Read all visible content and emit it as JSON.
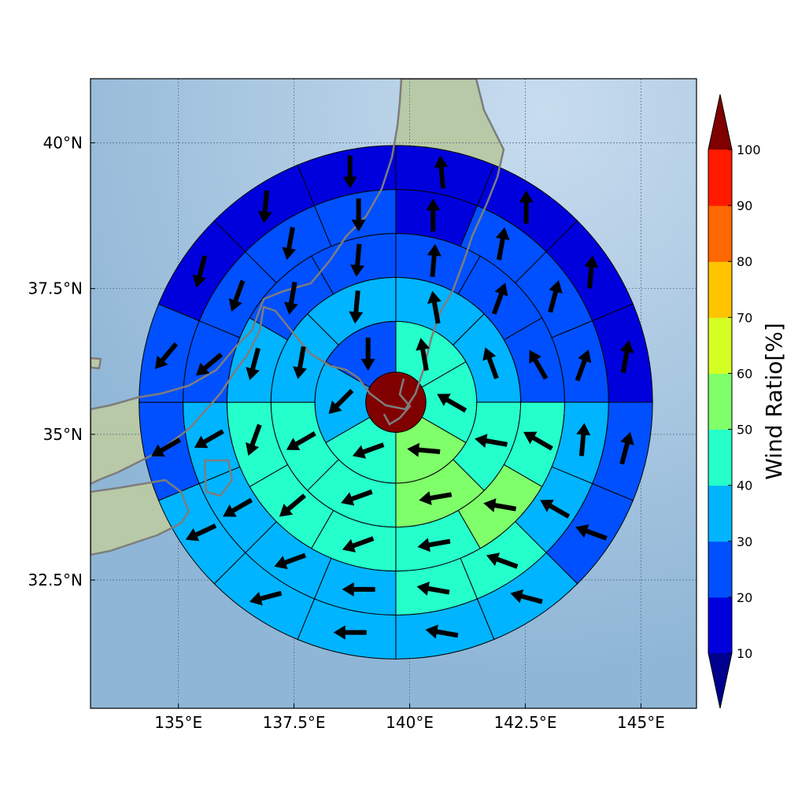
{
  "chart_data": {
    "type": "heatmap",
    "subtype": "polar sector map with wind vectors over a map",
    "title": "",
    "xlabel": "",
    "ylabel": "",
    "x_ticks": [
      135,
      137.5,
      140,
      142.5,
      145
    ],
    "x_tick_labels": [
      "135°E",
      "137.5°E",
      "140°E",
      "142.5°E",
      "145°E"
    ],
    "y_ticks": [
      32.5,
      35,
      37.5,
      40
    ],
    "y_tick_labels": [
      "32.5°N",
      "35°N",
      "37.5°N",
      "40°N"
    ],
    "xlim": [
      133.1,
      146.2
    ],
    "ylim": [
      30.3,
      41.1
    ],
    "grid": true,
    "center": {
      "lon": 139.7,
      "lat": 35.55,
      "value": 100
    },
    "ring_boundaries_deg": [
      0.65,
      1.75,
      2.7,
      3.65,
      4.6,
      5.55
    ],
    "ring_sector_counts": [
      6,
      8,
      12,
      16,
      16
    ],
    "sector_start_angle_deg": 90,
    "rings": [
      {
        "values": [
          45,
          45,
          55,
          45,
          30,
          25
        ],
        "wind_deg": [
          -10,
          -60,
          -85,
          -110,
          -135,
          -180
        ]
      },
      {
        "values": [
          30,
          35,
          45,
          55,
          45,
          45,
          30,
          30
        ],
        "wind_deg": [
          -10,
          -20,
          -80,
          -100,
          -110,
          -120,
          -170,
          -175
        ]
      },
      {
        "values": [
          25,
          25,
          25,
          45,
          55,
          45,
          40,
          40,
          40,
          30,
          20,
          20
        ],
        "wind_deg": [
          5,
          20,
          -30,
          -60,
          -80,
          -100,
          -110,
          -130,
          -160,
          -165,
          -170,
          -175
        ]
      },
      {
        "values": [
          15,
          20,
          20,
          20,
          30,
          30,
          40,
          40,
          30,
          30,
          30,
          30,
          20,
          20,
          20,
          20
        ],
        "wind_deg": [
          0,
          10,
          15,
          20,
          5,
          -60,
          -70,
          -80,
          -90,
          -110,
          -120,
          -120,
          -130,
          -160,
          -170,
          -180
        ]
      },
      {
        "values": [
          10,
          10,
          10,
          10,
          20,
          20,
          30,
          30,
          30,
          30,
          30,
          20,
          20,
          10,
          10,
          10
        ],
        "wind_deg": [
          -5,
          0,
          5,
          10,
          15,
          -70,
          -75,
          -80,
          -90,
          -105,
          -115,
          -120,
          -140,
          -165,
          -175,
          -180
        ]
      }
    ],
    "colorbar": {
      "label": "Wind Ratio[%]",
      "boundaries": [
        10,
        20,
        30,
        40,
        50,
        60,
        70,
        80,
        90,
        100
      ],
      "tick_labels": [
        "10",
        "20",
        "30",
        "40",
        "50",
        "60",
        "70",
        "80",
        "90",
        "100"
      ],
      "colors": [
        "#0000dd",
        "#0050ff",
        "#00b4ff",
        "#25ffcc",
        "#7fff6a",
        "#d5ff23",
        "#ffc300",
        "#ff6700",
        "#ff1a00"
      ],
      "under_color": "#00008f",
      "over_color": "#800000",
      "extend": "both"
    },
    "map_colors": {
      "ocean": "#8fb6d6",
      "ocean_light": "#c8dcee",
      "land": "#b7c9a6",
      "coastline": "#7d7d7d"
    }
  }
}
